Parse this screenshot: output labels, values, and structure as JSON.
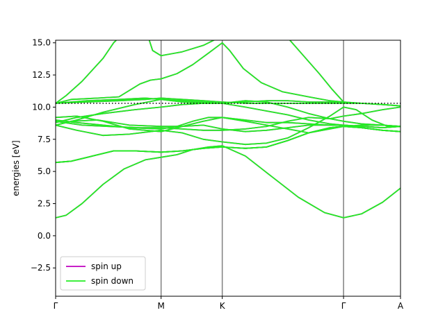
{
  "chart_data": {
    "type": "line",
    "title": "",
    "xlabel": "",
    "ylabel": "energies [eV]",
    "ylim": [
      -4.7,
      15.2
    ],
    "x_ticks": [
      {
        "label": "Γ",
        "x": 0
      },
      {
        "label": "M",
        "x": 1.0
      },
      {
        "label": "K",
        "x": 1.58
      },
      {
        "label": "Γ",
        "x": 2.73
      },
      {
        "label": "A",
        "x": 3.27
      }
    ],
    "y_ticks": [
      -2.5,
      0.0,
      2.5,
      5.0,
      7.5,
      10.0,
      12.5,
      15.0
    ],
    "y_tick_labels": [
      "−2.5",
      "0.0",
      "2.5",
      "5.0",
      "7.5",
      "10.0",
      "12.5",
      "15.0"
    ],
    "fermi_level": 10.3,
    "grid": false,
    "legend": {
      "placement": "lower-left",
      "entries": [
        {
          "label": "spin up",
          "color": "#bf00bf"
        },
        {
          "label": "spin down",
          "color": "#22ee22"
        }
      ]
    },
    "spin_up_color": "#bf00bf",
    "spin_down_color": "#22ee22",
    "fermi_color": "#000000",
    "vline_color": "#808080",
    "bands": [
      [
        [
          0,
          1.4
        ],
        [
          0.1,
          1.6
        ],
        [
          0.25,
          2.5
        ],
        [
          0.45,
          4.0
        ],
        [
          0.65,
          5.2
        ],
        [
          0.85,
          5.9
        ],
        [
          1.0,
          6.1
        ],
        [
          1.15,
          6.3
        ],
        [
          1.3,
          6.7
        ],
        [
          1.45,
          6.9
        ],
        [
          1.58,
          7.0
        ],
        [
          1.8,
          6.2
        ],
        [
          2.05,
          4.6
        ],
        [
          2.3,
          3.0
        ],
        [
          2.55,
          1.8
        ],
        [
          2.73,
          1.4
        ],
        [
          2.9,
          1.7
        ],
        [
          3.1,
          2.6
        ],
        [
          3.27,
          3.7
        ]
      ],
      [
        [
          0,
          5.7
        ],
        [
          0.15,
          5.8
        ],
        [
          0.35,
          6.2
        ],
        [
          0.55,
          6.6
        ],
        [
          0.75,
          6.6
        ],
        [
          1.0,
          6.5
        ],
        [
          1.2,
          6.6
        ],
        [
          1.4,
          6.8
        ],
        [
          1.58,
          6.9
        ],
        [
          1.8,
          6.8
        ],
        [
          2.0,
          6.9
        ],
        [
          2.2,
          7.4
        ],
        [
          2.4,
          8.0
        ],
        [
          2.6,
          8.4
        ],
        [
          2.73,
          8.5
        ],
        [
          2.9,
          8.4
        ],
        [
          3.1,
          8.2
        ],
        [
          3.27,
          8.1
        ]
      ],
      [
        [
          0,
          5.7
        ],
        [
          0.15,
          5.8
        ],
        [
          0.35,
          6.2
        ],
        [
          0.55,
          6.6
        ],
        [
          0.75,
          6.6
        ],
        [
          1.0,
          6.5
        ],
        [
          1.2,
          6.6
        ],
        [
          1.4,
          6.8
        ],
        [
          1.58,
          6.9
        ],
        [
          1.8,
          6.8
        ],
        [
          2.0,
          6.9
        ],
        [
          2.2,
          7.4
        ],
        [
          2.4,
          8.0
        ],
        [
          2.6,
          8.4
        ],
        [
          2.73,
          8.5
        ],
        [
          2.9,
          8.4
        ],
        [
          3.1,
          8.2
        ],
        [
          3.27,
          8.1
        ]
      ],
      [
        [
          0,
          8.6
        ],
        [
          0.2,
          8.2
        ],
        [
          0.45,
          7.8
        ],
        [
          0.7,
          7.9
        ],
        [
          1.0,
          8.2
        ],
        [
          1.2,
          8.0
        ],
        [
          1.4,
          7.5
        ],
        [
          1.58,
          7.3
        ],
        [
          1.8,
          7.1
        ],
        [
          2.0,
          7.2
        ],
        [
          2.2,
          7.6
        ],
        [
          2.4,
          8.4
        ],
        [
          2.6,
          9.3
        ],
        [
          2.73,
          10.0
        ],
        [
          2.85,
          9.8
        ],
        [
          3.0,
          9.0
        ],
        [
          3.15,
          8.5
        ],
        [
          3.27,
          8.5
        ]
      ],
      [
        [
          0,
          8.9
        ],
        [
          0.25,
          8.6
        ],
        [
          0.5,
          8.5
        ],
        [
          0.8,
          8.4
        ],
        [
          1.0,
          8.4
        ],
        [
          1.2,
          8.3
        ],
        [
          1.4,
          8.2
        ],
        [
          1.58,
          8.2
        ],
        [
          1.8,
          8.3
        ],
        [
          2.0,
          8.5
        ],
        [
          2.2,
          8.9
        ],
        [
          2.4,
          9.2
        ],
        [
          2.6,
          9.1
        ],
        [
          2.73,
          8.9
        ],
        [
          2.9,
          8.7
        ],
        [
          3.1,
          8.6
        ],
        [
          3.27,
          8.5
        ]
      ],
      [
        [
          0,
          8.6
        ],
        [
          0.15,
          8.9
        ],
        [
          0.4,
          9.0
        ],
        [
          0.7,
          8.6
        ],
        [
          1.0,
          8.5
        ],
        [
          1.2,
          8.5
        ],
        [
          1.4,
          8.6
        ],
        [
          1.58,
          8.3
        ],
        [
          1.8,
          8.1
        ],
        [
          2.0,
          8.2
        ],
        [
          2.2,
          8.4
        ],
        [
          2.4,
          8.6
        ],
        [
          2.6,
          8.6
        ],
        [
          2.73,
          8.6
        ],
        [
          2.9,
          8.5
        ],
        [
          3.1,
          8.4
        ],
        [
          3.27,
          8.5
        ]
      ],
      [
        [
          0,
          9.0
        ],
        [
          0.2,
          8.8
        ],
        [
          0.45,
          8.6
        ],
        [
          0.7,
          8.4
        ],
        [
          1.0,
          8.3
        ],
        [
          1.15,
          8.5
        ],
        [
          1.3,
          8.9
        ],
        [
          1.45,
          9.2
        ],
        [
          1.58,
          9.2
        ],
        [
          1.8,
          8.9
        ],
        [
          2.0,
          8.6
        ],
        [
          2.2,
          8.3
        ],
        [
          2.4,
          8.0
        ],
        [
          2.6,
          8.3
        ],
        [
          2.73,
          8.5
        ],
        [
          2.9,
          8.6
        ],
        [
          3.1,
          8.6
        ],
        [
          3.27,
          8.5
        ]
      ],
      [
        [
          0,
          9.2
        ],
        [
          0.2,
          9.3
        ],
        [
          0.45,
          8.9
        ],
        [
          0.7,
          8.3
        ],
        [
          1.0,
          8.1
        ],
        [
          1.2,
          8.5
        ],
        [
          1.4,
          8.9
        ],
        [
          1.58,
          9.2
        ],
        [
          1.8,
          9.0
        ],
        [
          2.0,
          8.8
        ],
        [
          2.2,
          8.8
        ],
        [
          2.4,
          8.7
        ],
        [
          2.6,
          8.6
        ],
        [
          2.73,
          8.6
        ],
        [
          2.9,
          8.4
        ],
        [
          3.1,
          8.2
        ],
        [
          3.27,
          8.1
        ]
      ],
      [
        [
          0,
          8.8
        ],
        [
          0.2,
          9.2
        ],
        [
          0.45,
          9.5
        ],
        [
          0.75,
          9.8
        ],
        [
          1.0,
          10.0
        ],
        [
          1.2,
          10.2
        ],
        [
          1.4,
          10.3
        ],
        [
          1.58,
          10.3
        ],
        [
          1.8,
          10.0
        ],
        [
          2.0,
          9.7
        ],
        [
          2.2,
          9.4
        ],
        [
          2.4,
          9.0
        ],
        [
          2.6,
          8.7
        ],
        [
          2.73,
          8.6
        ],
        [
          2.9,
          8.5
        ],
        [
          3.1,
          8.4
        ],
        [
          3.27,
          8.5
        ]
      ],
      [
        [
          0,
          8.6
        ],
        [
          0.2,
          9.0
        ],
        [
          0.45,
          9.6
        ],
        [
          0.75,
          10.2
        ],
        [
          1.0,
          10.6
        ],
        [
          1.2,
          10.5
        ],
        [
          1.4,
          10.4
        ],
        [
          1.58,
          10.3
        ],
        [
          1.8,
          10.5
        ],
        [
          2.0,
          10.4
        ],
        [
          2.2,
          10.0
        ],
        [
          2.4,
          9.5
        ],
        [
          2.6,
          9.1
        ],
        [
          2.73,
          9.3
        ],
        [
          2.9,
          9.5
        ],
        [
          3.1,
          9.8
        ],
        [
          3.27,
          10.0
        ]
      ],
      [
        [
          0,
          10.3
        ],
        [
          0.3,
          10.4
        ],
        [
          0.6,
          10.5
        ],
        [
          0.85,
          10.6
        ],
        [
          1.0,
          10.7
        ],
        [
          1.2,
          10.6
        ],
        [
          1.4,
          10.5
        ],
        [
          1.58,
          10.4
        ],
        [
          1.8,
          10.3
        ],
        [
          2.0,
          10.3
        ],
        [
          2.2,
          10.3
        ],
        [
          2.4,
          10.3
        ],
        [
          2.6,
          10.3
        ],
        [
          2.73,
          10.3
        ],
        [
          2.9,
          10.3
        ],
        [
          3.1,
          10.2
        ],
        [
          3.27,
          10.1
        ]
      ],
      [
        [
          0,
          10.3
        ],
        [
          0.3,
          10.5
        ],
        [
          0.6,
          10.6
        ],
        [
          0.85,
          10.7
        ],
        [
          1.0,
          10.6
        ],
        [
          1.2,
          10.4
        ],
        [
          1.4,
          10.3
        ],
        [
          1.58,
          10.3
        ],
        [
          1.8,
          10.4
        ],
        [
          2.0,
          10.5
        ],
        [
          2.2,
          10.5
        ],
        [
          2.4,
          10.4
        ],
        [
          2.6,
          10.4
        ],
        [
          2.73,
          10.4
        ],
        [
          2.9,
          10.3
        ],
        [
          3.1,
          10.2
        ],
        [
          3.27,
          10.1
        ]
      ],
      [
        [
          0,
          10.3
        ],
        [
          0.1,
          10.9
        ],
        [
          0.25,
          12.0
        ],
        [
          0.45,
          13.8
        ],
        [
          0.55,
          15.0
        ],
        [
          0.6,
          15.4
        ]
      ],
      [
        [
          0,
          10.3
        ],
        [
          0.15,
          10.6
        ],
        [
          0.4,
          10.7
        ],
        [
          0.6,
          10.8
        ],
        [
          0.8,
          11.8
        ],
        [
          0.9,
          12.1
        ],
        [
          1.0,
          12.2
        ],
        [
          1.15,
          12.6
        ],
        [
          1.3,
          13.3
        ],
        [
          1.45,
          14.2
        ],
        [
          1.58,
          15.0
        ]
      ],
      [
        [
          0.88,
          15.4
        ],
        [
          0.92,
          14.4
        ],
        [
          1.0,
          14.0
        ],
        [
          1.2,
          14.3
        ],
        [
          1.4,
          14.8
        ],
        [
          1.5,
          15.2
        ],
        [
          1.55,
          15.4
        ]
      ],
      [
        [
          1.58,
          15.0
        ],
        [
          1.65,
          14.4
        ],
        [
          1.78,
          13.0
        ],
        [
          1.95,
          11.9
        ],
        [
          2.15,
          11.2
        ],
        [
          2.4,
          10.8
        ],
        [
          2.6,
          10.5
        ],
        [
          2.73,
          10.4
        ]
      ],
      [
        [
          2.2,
          15.4
        ],
        [
          2.35,
          14.0
        ],
        [
          2.5,
          12.6
        ],
        [
          2.62,
          11.4
        ],
        [
          2.73,
          10.4
        ]
      ]
    ]
  }
}
